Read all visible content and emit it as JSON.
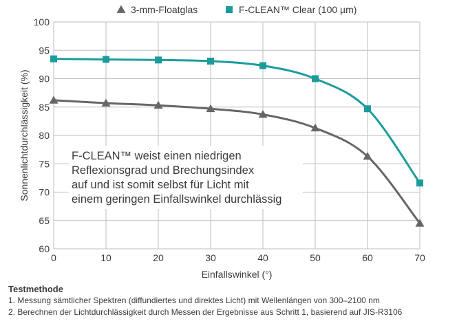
{
  "chart_data": {
    "type": "line",
    "xlabel": "Einfallswinkel (°)",
    "ylabel": "Sonnenlichtdurchlässigkeit (%)",
    "xlim": [
      0,
      70
    ],
    "ylim": [
      60,
      100
    ],
    "x_ticks": [
      0,
      10,
      20,
      30,
      40,
      50,
      60,
      70
    ],
    "y_ticks": [
      60,
      65,
      70,
      75,
      80,
      85,
      90,
      95,
      100
    ],
    "grid": true,
    "legend_position": "top",
    "series": [
      {
        "name": "3-mm-Floatglas",
        "marker": "triangle",
        "color": "#666666",
        "x": [
          0,
          10,
          20,
          30,
          40,
          50,
          60,
          70
        ],
        "values": [
          86.2,
          85.7,
          85.3,
          84.7,
          83.7,
          81.3,
          76.3,
          64.5
        ]
      },
      {
        "name": "F-CLEAN™ Clear (100 µm)",
        "marker": "square",
        "color": "#1a9c9c",
        "x": [
          0,
          10,
          20,
          30,
          40,
          50,
          60,
          70
        ],
        "values": [
          93.5,
          93.4,
          93.3,
          93.1,
          92.3,
          90.0,
          84.7,
          71.6
        ]
      }
    ],
    "annotation": [
      "F-CLEAN™ weist einen niedrigen",
      "Reflexionsgrad und Brechungsindex",
      "auf und ist somit selbst für Licht mit",
      "einem geringen Einfallswinkel durchlässig"
    ]
  },
  "notes": {
    "heading": "Testmethode",
    "items": [
      "1. Messung sämtlicher Spektren (diffundiertes und direktes Licht) mit Wellenlängen von 300–2100 nm",
      "2. Berechnen der Lichtdurchlässigkeit durch Messen der Ergebnisse aus Schritt 1, basierend auf JIS-R3106"
    ]
  }
}
